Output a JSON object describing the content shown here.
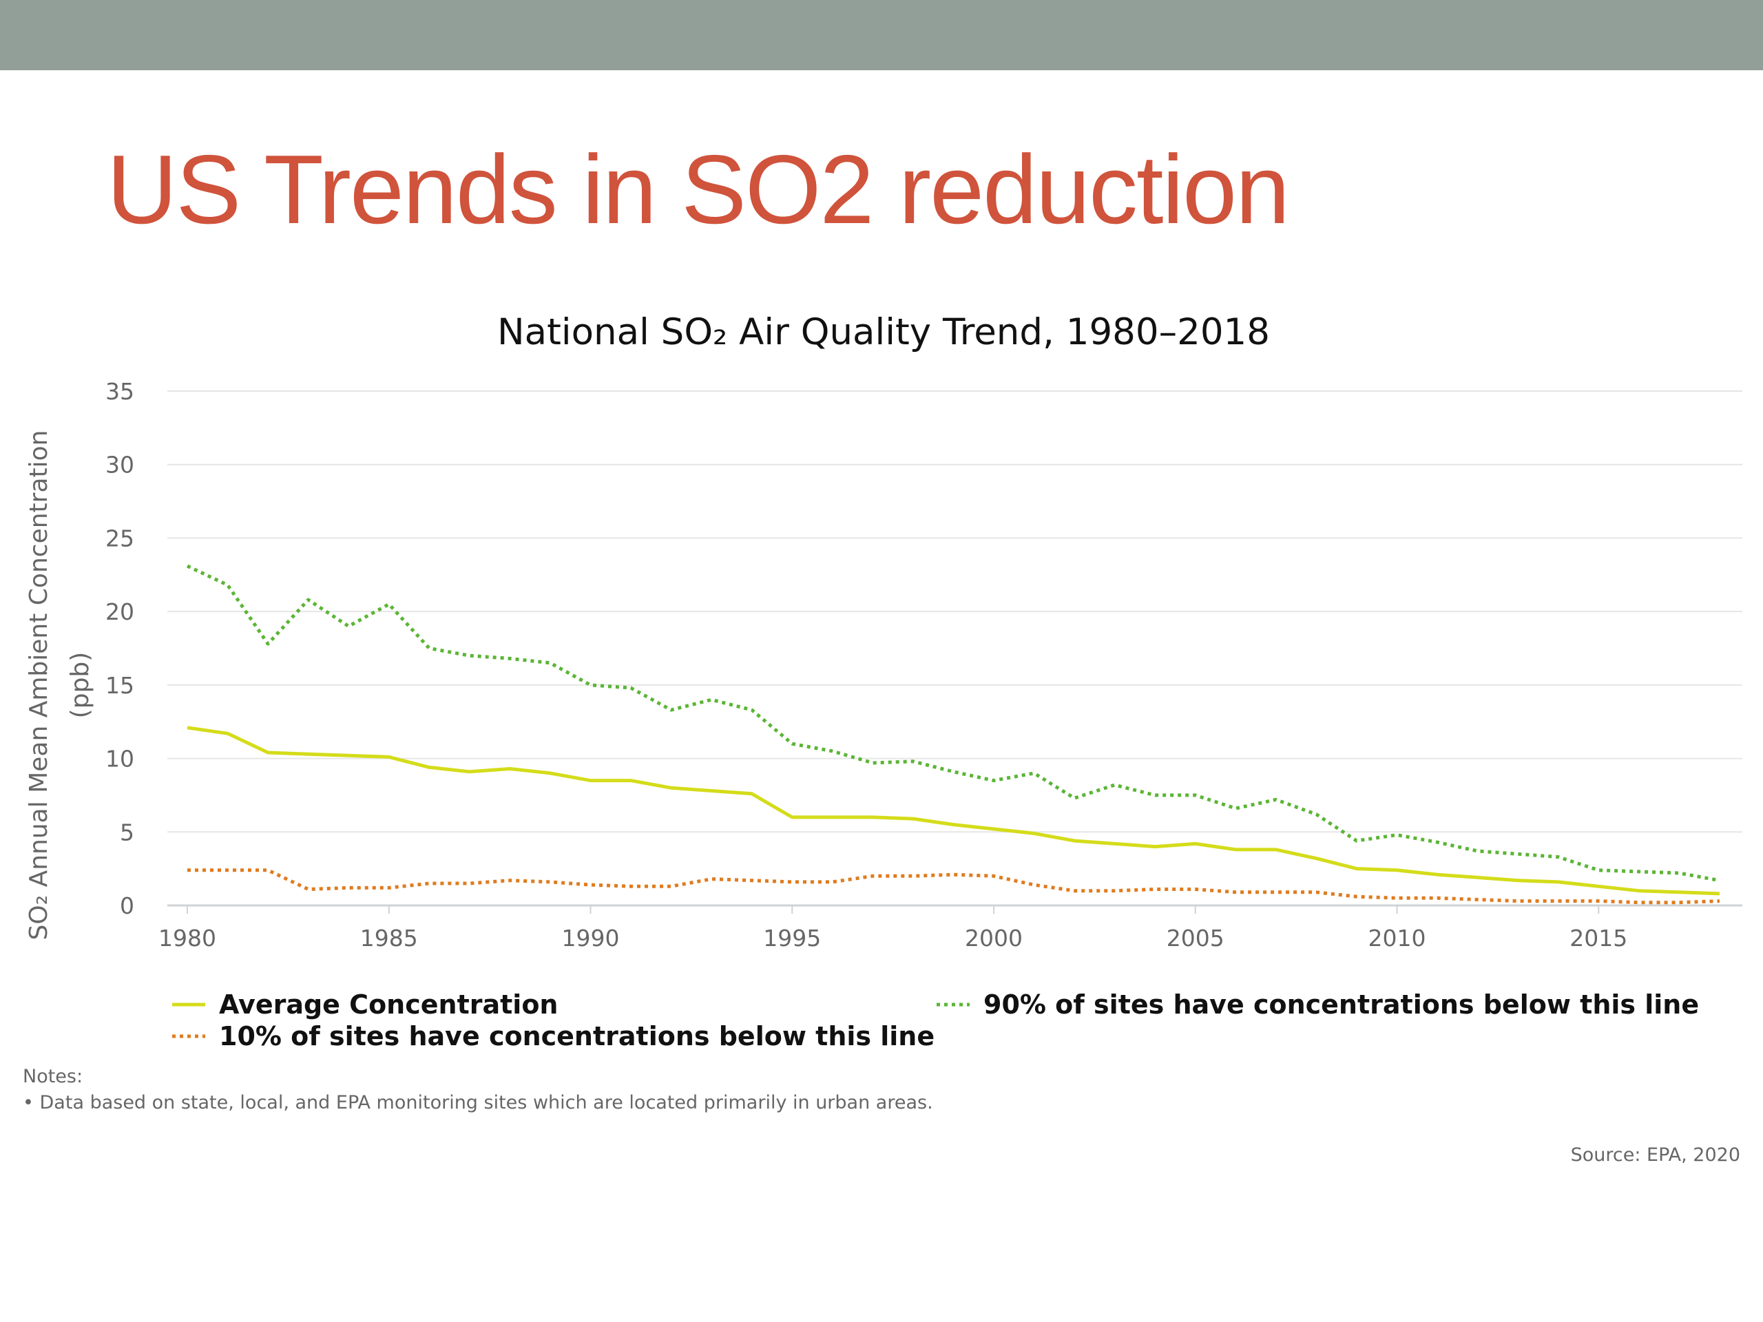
{
  "slide": {
    "title": "US Trends in SO2 reduction"
  },
  "colors": {
    "top_bar": "#919f98",
    "title": "#d0533c",
    "average": "#d4dc1a",
    "p90": "#5bb535",
    "p10": "#e07b1f"
  },
  "chart_data": {
    "type": "line",
    "title": "National SO₂ Air Quality Trend, 1980–2018",
    "xlabel": "",
    "ylabel": "SO₂ Annual Mean Ambient Concentration",
    "ylabel_unit": "(ppb)",
    "xlim": [
      1980,
      2018
    ],
    "ylim": [
      0,
      35
    ],
    "x_ticks": [
      1980,
      1985,
      1990,
      1995,
      2000,
      2005,
      2010,
      2015
    ],
    "y_ticks": [
      0,
      5,
      10,
      15,
      20,
      25,
      30,
      35
    ],
    "grid": true,
    "legend_position": "bottom",
    "x": [
      1980,
      1981,
      1982,
      1983,
      1984,
      1985,
      1986,
      1987,
      1988,
      1989,
      1990,
      1991,
      1992,
      1993,
      1994,
      1995,
      1996,
      1997,
      1998,
      1999,
      2000,
      2001,
      2002,
      2003,
      2004,
      2005,
      2006,
      2007,
      2008,
      2009,
      2010,
      2011,
      2012,
      2013,
      2014,
      2015,
      2016,
      2017,
      2018
    ],
    "series": [
      {
        "name": "Average Concentration",
        "style": "solid",
        "color": "#d4dc1a",
        "values": [
          12.1,
          11.7,
          10.4,
          10.3,
          10.2,
          10.1,
          9.4,
          9.1,
          9.3,
          9.0,
          8.5,
          8.5,
          8.0,
          7.8,
          7.6,
          6.0,
          6.0,
          6.0,
          5.9,
          5.5,
          5.2,
          4.9,
          4.4,
          4.2,
          4.0,
          4.2,
          3.8,
          3.8,
          3.2,
          2.5,
          2.4,
          2.1,
          1.9,
          1.7,
          1.6,
          1.3,
          1.0,
          0.9,
          0.8
        ]
      },
      {
        "name": "90% of sites have concentrations below this line",
        "style": "dotted",
        "color": "#5bb535",
        "values": [
          23.1,
          21.8,
          17.8,
          20.8,
          19.0,
          20.5,
          17.5,
          17.0,
          16.8,
          16.5,
          15.0,
          14.8,
          13.3,
          14.0,
          13.3,
          11.0,
          10.5,
          9.7,
          9.8,
          9.1,
          8.5,
          9.0,
          7.3,
          8.2,
          7.5,
          7.5,
          6.6,
          7.2,
          6.2,
          4.4,
          4.8,
          4.3,
          3.7,
          3.5,
          3.3,
          2.4,
          2.3,
          2.2,
          1.7
        ]
      },
      {
        "name": "10% of sites have concentrations below this line",
        "style": "dotted",
        "color": "#e07b1f",
        "values": [
          2.4,
          2.4,
          2.4,
          1.1,
          1.2,
          1.2,
          1.5,
          1.5,
          1.7,
          1.6,
          1.4,
          1.3,
          1.3,
          1.8,
          1.7,
          1.6,
          1.6,
          2.0,
          2.0,
          2.1,
          2.0,
          1.4,
          1.0,
          1.0,
          1.1,
          1.1,
          0.9,
          0.9,
          0.9,
          0.6,
          0.5,
          0.5,
          0.4,
          0.3,
          0.3,
          0.3,
          0.2,
          0.2,
          0.3
        ]
      }
    ],
    "notes_heading": "Notes:",
    "notes": [
      "Data based on state, local, and EPA monitoring sites which are located primarily in urban areas."
    ],
    "source": "Source: EPA, 2020"
  }
}
